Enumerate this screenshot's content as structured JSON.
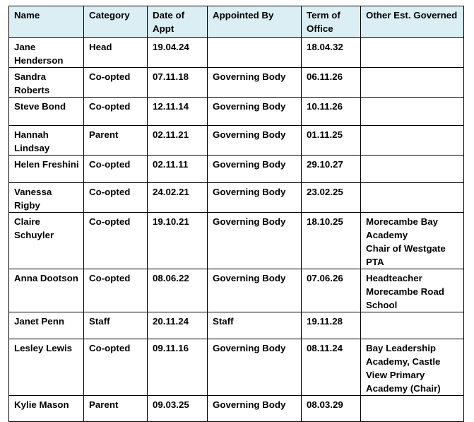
{
  "table": {
    "headers": [
      "Name",
      "Category",
      "Date of Appt",
      "Appointed By",
      "Term of Office",
      "Other Est. Governed"
    ],
    "rows": [
      {
        "name": "Jane Henderson",
        "category": "Head",
        "date_of_appt": "19.04.24",
        "appointed_by": "",
        "term_of_office": "18.04.32",
        "other": ""
      },
      {
        "name": "Sandra Roberts",
        "category": "Co-opted",
        "date_of_appt": "07.11.18",
        "appointed_by": "Governing Body",
        "term_of_office": "06.11.26",
        "other": ""
      },
      {
        "name": "Steve Bond",
        "category": "Co-opted",
        "date_of_appt": "12.11.14",
        "appointed_by": "Governing Body",
        "term_of_office": "10.11.26",
        "other": ""
      },
      {
        "name": "Hannah Lindsay",
        "category": "Parent",
        "date_of_appt": "02.11.21",
        "appointed_by": "Governing Body",
        "term_of_office": "01.11.25",
        "other": ""
      },
      {
        "name": "Helen Freshini",
        "category": "Co-opted",
        "date_of_appt": "02.11.11",
        "appointed_by": "Governing Body",
        "term_of_office": "29.10.27",
        "other": ""
      },
      {
        "name": "Vanessa Rigby",
        "category": "Co-opted",
        "date_of_appt": "24.02.21",
        "appointed_by": "Governing Body",
        "term_of_office": "23.02.25",
        "other": ""
      },
      {
        "name": "Claire Schuyler",
        "category": "Co-opted",
        "date_of_appt": "19.10.21",
        "appointed_by": "Governing Body",
        "term_of_office": "18.10.25",
        "other": "Morecambe Bay Academy\nChair of Westgate PTA"
      },
      {
        "name": "Anna Dootson",
        "category": "Co-opted",
        "date_of_appt": "08.06.22",
        "appointed_by": "Governing Body",
        "term_of_office": "07.06.26",
        "other": "Headteacher Morecambe Road School"
      },
      {
        "name": "Janet Penn",
        "category": "Staff",
        "date_of_appt": "20.11.24",
        "appointed_by": "Staff",
        "term_of_office": "19.11.28",
        "other": ""
      },
      {
        "name": "Lesley Lewis",
        "category": "Co-opted",
        "date_of_appt": "09.11.16",
        "appointed_by": "Governing Body",
        "term_of_office": "08.11.24",
        "other": "Bay Leadership Academy, Castle View Primary Academy (Chair)"
      },
      {
        "name": "Kylie Mason",
        "category": "Parent",
        "date_of_appt": "09.03.25",
        "appointed_by": "Governing Body",
        "term_of_office": "08.03.29",
        "other": ""
      }
    ]
  },
  "colors": {
    "header_bg": "#daeef3",
    "border": "#000000"
  }
}
